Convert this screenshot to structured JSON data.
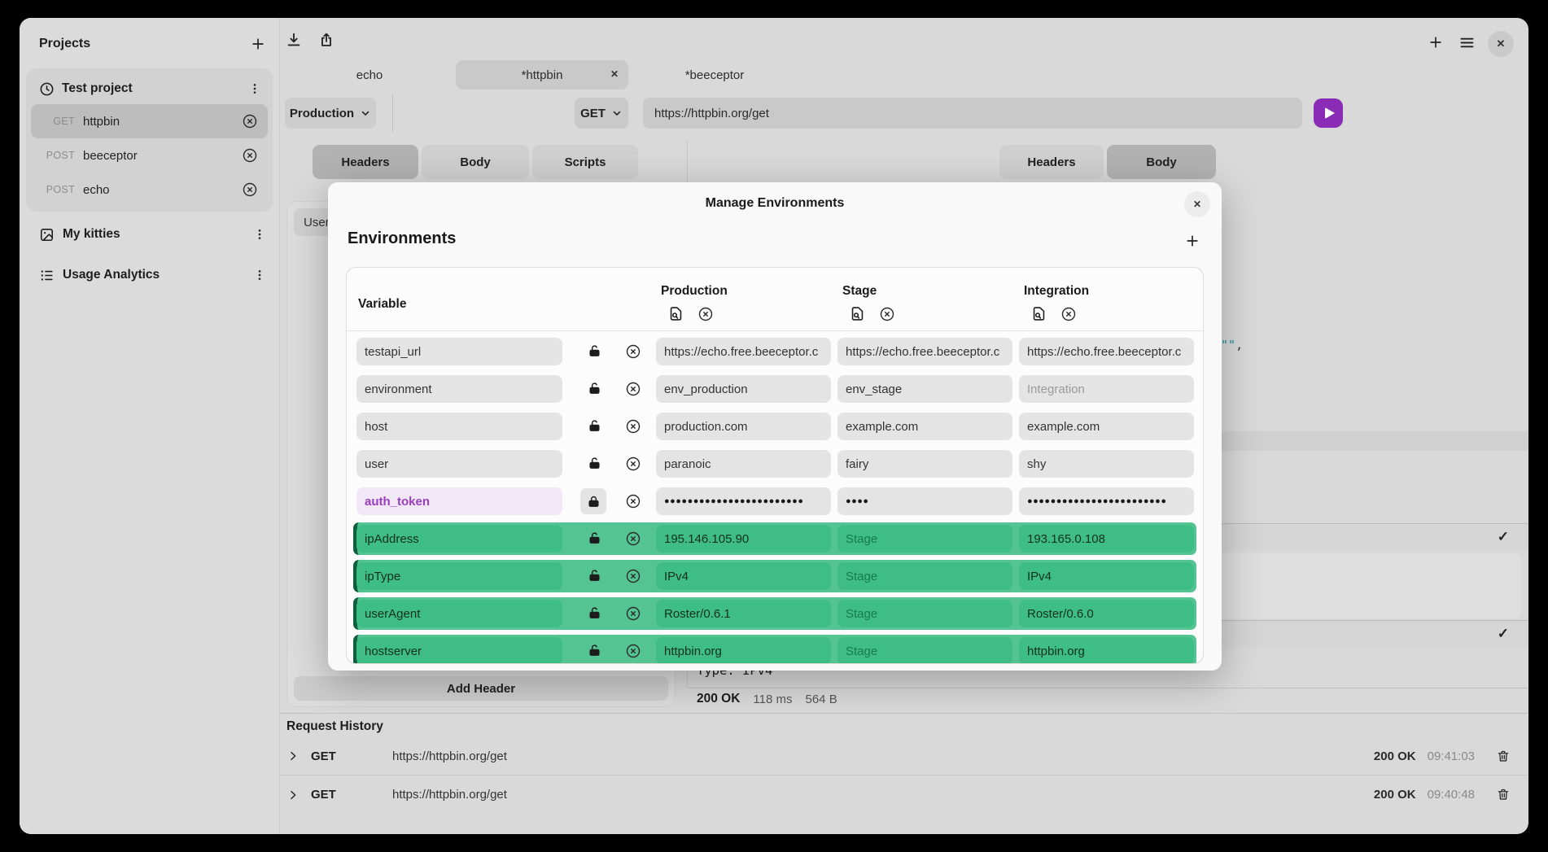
{
  "colors": {
    "accent_purple": "#8a2cb5",
    "green_row": "#55c493",
    "green_field": "#3fbd86",
    "green_edge": "#0f5f3e",
    "secret_bg": "#f2e7f7",
    "secret_text": "#9b3dbd",
    "teal_fragment": "#178f9e"
  },
  "sidebar": {
    "title": "Projects",
    "project": {
      "name": "Test project",
      "items": [
        {
          "method": "GET",
          "name": "httpbin",
          "selected": true
        },
        {
          "method": "POST",
          "name": "beeceptor",
          "selected": false
        },
        {
          "method": "POST",
          "name": "echo",
          "selected": false
        }
      ]
    },
    "sections": [
      {
        "icon": "image",
        "label": "My kitties"
      },
      {
        "icon": "list",
        "label": "Usage Analytics"
      }
    ]
  },
  "topbar": {
    "tabs": [
      {
        "label": "echo",
        "active": false,
        "closable": false
      },
      {
        "label": "*httpbin",
        "active": true,
        "closable": true
      },
      {
        "label": "*beeceptor",
        "active": false,
        "closable": false
      }
    ]
  },
  "request": {
    "environment": "Production",
    "method": "GET",
    "url": "https://httpbin.org/get",
    "tabs": [
      "Headers",
      "Body",
      "Scripts"
    ],
    "active_tab": "Headers",
    "header_chip": "User-",
    "add_header_label": "Add Header"
  },
  "response": {
    "tabs": [
      "Headers",
      "Body"
    ],
    "active_tab": "Body",
    "fragment_quotes": "\"\"",
    "fragment_comma": ",",
    "type_line": "Type: IPv4",
    "check": "✓",
    "status": "200 OK",
    "time": "118 ms",
    "size": "564 B"
  },
  "history": {
    "title": "Request History",
    "rows": [
      {
        "method": "GET",
        "url": "https://httpbin.org/get",
        "status": "200 OK",
        "time": "09:41:03"
      },
      {
        "method": "GET",
        "url": "https://httpbin.org/get",
        "status": "200 OK",
        "time": "09:40:48"
      }
    ]
  },
  "modal": {
    "title": "Manage Environments",
    "close": "✕",
    "heading": "Environments",
    "variable_col": "Variable",
    "env_columns": [
      "Production",
      "Stage",
      "Integration"
    ],
    "rows": [
      {
        "name": "testapi_url",
        "secret": false,
        "green": false,
        "cells": [
          {
            "text": "https://echo.free.beeceptor.c",
            "ph": false
          },
          {
            "text": "https://echo.free.beeceptor.c",
            "ph": false
          },
          {
            "text": "https://echo.free.beeceptor.c",
            "ph": false
          }
        ]
      },
      {
        "name": "environment",
        "secret": false,
        "green": false,
        "cells": [
          {
            "text": "env_production",
            "ph": false
          },
          {
            "text": "env_stage",
            "ph": false
          },
          {
            "text": "Integration",
            "ph": true
          }
        ]
      },
      {
        "name": "host",
        "secret": false,
        "green": false,
        "cells": [
          {
            "text": "production.com",
            "ph": false
          },
          {
            "text": "example.com",
            "ph": false
          },
          {
            "text": "example.com",
            "ph": false
          }
        ]
      },
      {
        "name": "user",
        "secret": false,
        "green": false,
        "cells": [
          {
            "text": "paranoic",
            "ph": false
          },
          {
            "text": "fairy",
            "ph": false
          },
          {
            "text": "shy",
            "ph": false
          }
        ]
      },
      {
        "name": "auth_token",
        "secret": true,
        "green": false,
        "cells": [
          {
            "text": "●●●●●●●●●●●●●●●●●●●●●●●●",
            "ph": false,
            "masked": true
          },
          {
            "text": "●●●●",
            "ph": false,
            "masked": true
          },
          {
            "text": "●●●●●●●●●●●●●●●●●●●●●●●●",
            "ph": false,
            "masked": true
          }
        ]
      },
      {
        "name": "ipAddress",
        "secret": false,
        "green": true,
        "cells": [
          {
            "text": "195.146.105.90",
            "ph": false
          },
          {
            "text": "Stage",
            "ph": true
          },
          {
            "text": "193.165.0.108",
            "ph": false
          }
        ]
      },
      {
        "name": "ipType",
        "secret": false,
        "green": true,
        "cells": [
          {
            "text": "IPv4",
            "ph": false
          },
          {
            "text": "Stage",
            "ph": true
          },
          {
            "text": "IPv4",
            "ph": false
          }
        ]
      },
      {
        "name": "userAgent",
        "secret": false,
        "green": true,
        "cells": [
          {
            "text": "Roster/0.6.1",
            "ph": false
          },
          {
            "text": "Stage",
            "ph": true
          },
          {
            "text": "Roster/0.6.0",
            "ph": false
          }
        ]
      },
      {
        "name": "hostserver",
        "secret": false,
        "green": true,
        "cells": [
          {
            "text": "httpbin.org",
            "ph": false
          },
          {
            "text": "Stage",
            "ph": true
          },
          {
            "text": "httpbin.org",
            "ph": false
          }
        ]
      }
    ]
  }
}
